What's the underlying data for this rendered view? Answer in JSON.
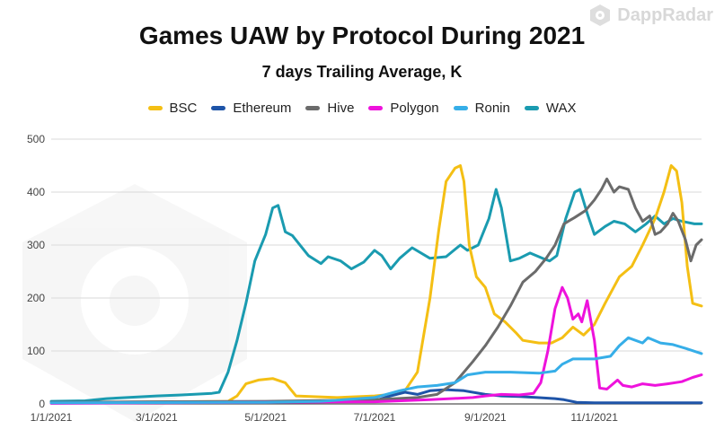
{
  "brand": {
    "name": "DappRadar"
  },
  "chart_data": {
    "type": "line",
    "title": "Games UAW by Protocol During 2021",
    "subtitle": "7 days Trailing Average, K",
    "legend_position": "top",
    "grid": true,
    "ylim": [
      0,
      500
    ],
    "yticks": [
      0,
      100,
      200,
      300,
      400,
      500
    ],
    "xlim": [
      "2021-01-01",
      "2021-12-31"
    ],
    "xticks": [
      {
        "date": "2021-01-01",
        "label": "1/1/2021"
      },
      {
        "date": "2021-03-01",
        "label": "3/1/2021"
      },
      {
        "date": "2021-05-01",
        "label": "5/1/2021"
      },
      {
        "date": "2021-07-01",
        "label": "7/1/2021"
      },
      {
        "date": "2021-09-01",
        "label": "9/1/2021"
      },
      {
        "date": "2021-11-01",
        "label": "11/1/2021"
      }
    ],
    "series": [
      {
        "name": "WAX",
        "color": "#1a9bb0",
        "points": [
          [
            "2021-01-01",
            5
          ],
          [
            "2021-01-20",
            6
          ],
          [
            "2021-02-01",
            10
          ],
          [
            "2021-03-01",
            15
          ],
          [
            "2021-03-15",
            17
          ],
          [
            "2021-04-01",
            20
          ],
          [
            "2021-04-05",
            22
          ],
          [
            "2021-04-10",
            60
          ],
          [
            "2021-04-15",
            120
          ],
          [
            "2021-04-20",
            190
          ],
          [
            "2021-04-25",
            270
          ],
          [
            "2021-05-01",
            320
          ],
          [
            "2021-05-05",
            370
          ],
          [
            "2021-05-08",
            375
          ],
          [
            "2021-05-12",
            325
          ],
          [
            "2021-05-16",
            318
          ],
          [
            "2021-05-25",
            280
          ],
          [
            "2021-06-01",
            265
          ],
          [
            "2021-06-05",
            278
          ],
          [
            "2021-06-12",
            270
          ],
          [
            "2021-06-18",
            255
          ],
          [
            "2021-06-25",
            268
          ],
          [
            "2021-07-01",
            290
          ],
          [
            "2021-07-05",
            280
          ],
          [
            "2021-07-10",
            255
          ],
          [
            "2021-07-15",
            275
          ],
          [
            "2021-07-22",
            295
          ],
          [
            "2021-08-01",
            275
          ],
          [
            "2021-08-10",
            278
          ],
          [
            "2021-08-18",
            300
          ],
          [
            "2021-08-22",
            290
          ],
          [
            "2021-08-28",
            300
          ],
          [
            "2021-09-03",
            350
          ],
          [
            "2021-09-07",
            405
          ],
          [
            "2021-09-10",
            370
          ],
          [
            "2021-09-15",
            270
          ],
          [
            "2021-09-20",
            275
          ],
          [
            "2021-09-26",
            285
          ],
          [
            "2021-10-03",
            275
          ],
          [
            "2021-10-07",
            270
          ],
          [
            "2021-10-11",
            280
          ],
          [
            "2021-10-16",
            350
          ],
          [
            "2021-10-21",
            400
          ],
          [
            "2021-10-24",
            405
          ],
          [
            "2021-10-28",
            360
          ],
          [
            "2021-11-01",
            320
          ],
          [
            "2021-11-07",
            335
          ],
          [
            "2021-11-12",
            345
          ],
          [
            "2021-11-18",
            340
          ],
          [
            "2021-11-24",
            325
          ],
          [
            "2021-11-30",
            340
          ],
          [
            "2021-12-05",
            355
          ],
          [
            "2021-12-10",
            340
          ],
          [
            "2021-12-15",
            350
          ],
          [
            "2021-12-20",
            345
          ],
          [
            "2021-12-27",
            340
          ],
          [
            "2021-12-31",
            340
          ]
        ]
      },
      {
        "name": "BSC",
        "color": "#f4bf14",
        "points": [
          [
            "2021-01-01",
            2
          ],
          [
            "2021-04-10",
            5
          ],
          [
            "2021-04-15",
            15
          ],
          [
            "2021-04-20",
            38
          ],
          [
            "2021-04-27",
            45
          ],
          [
            "2021-05-05",
            48
          ],
          [
            "2021-05-12",
            40
          ],
          [
            "2021-05-18",
            15
          ],
          [
            "2021-06-10",
            12
          ],
          [
            "2021-07-01",
            15
          ],
          [
            "2021-07-10",
            18
          ],
          [
            "2021-07-18",
            25
          ],
          [
            "2021-07-25",
            60
          ],
          [
            "2021-08-01",
            200
          ],
          [
            "2021-08-06",
            330
          ],
          [
            "2021-08-10",
            420
          ],
          [
            "2021-08-15",
            445
          ],
          [
            "2021-08-18",
            450
          ],
          [
            "2021-08-20",
            420
          ],
          [
            "2021-08-23",
            300
          ],
          [
            "2021-08-27",
            240
          ],
          [
            "2021-09-01",
            220
          ],
          [
            "2021-09-06",
            170
          ],
          [
            "2021-09-12",
            155
          ],
          [
            "2021-09-18",
            135
          ],
          [
            "2021-09-22",
            120
          ],
          [
            "2021-10-01",
            115
          ],
          [
            "2021-10-08",
            115
          ],
          [
            "2021-10-14",
            125
          ],
          [
            "2021-10-20",
            145
          ],
          [
            "2021-10-26",
            130
          ],
          [
            "2021-11-01",
            150
          ],
          [
            "2021-11-07",
            190
          ],
          [
            "2021-11-15",
            240
          ],
          [
            "2021-11-22",
            260
          ],
          [
            "2021-11-28",
            300
          ],
          [
            "2021-12-05",
            350
          ],
          [
            "2021-12-10",
            400
          ],
          [
            "2021-12-14",
            450
          ],
          [
            "2021-12-17",
            440
          ],
          [
            "2021-12-20",
            380
          ],
          [
            "2021-12-23",
            260
          ],
          [
            "2021-12-26",
            190
          ],
          [
            "2021-12-31",
            185
          ]
        ]
      },
      {
        "name": "Ethereum",
        "color": "#1e54a8",
        "points": [
          [
            "2021-01-01",
            3
          ],
          [
            "2021-06-01",
            4
          ],
          [
            "2021-07-01",
            6
          ],
          [
            "2021-07-10",
            15
          ],
          [
            "2021-07-18",
            22
          ],
          [
            "2021-07-25",
            18
          ],
          [
            "2021-08-01",
            25
          ],
          [
            "2021-08-10",
            27
          ],
          [
            "2021-08-20",
            25
          ],
          [
            "2021-09-01",
            18
          ],
          [
            "2021-09-10",
            15
          ],
          [
            "2021-09-20",
            14
          ],
          [
            "2021-09-30",
            12
          ],
          [
            "2021-10-10",
            10
          ],
          [
            "2021-10-15",
            8
          ],
          [
            "2021-10-22",
            3
          ],
          [
            "2021-11-01",
            2
          ],
          [
            "2021-12-31",
            2
          ]
        ]
      },
      {
        "name": "Hive",
        "color": "#6b6b6b",
        "points": [
          [
            "2021-01-01",
            3
          ],
          [
            "2021-03-01",
            4
          ],
          [
            "2021-05-01",
            5
          ],
          [
            "2021-07-01",
            8
          ],
          [
            "2021-07-25",
            12
          ],
          [
            "2021-08-05",
            18
          ],
          [
            "2021-08-15",
            40
          ],
          [
            "2021-08-25",
            80
          ],
          [
            "2021-09-01",
            110
          ],
          [
            "2021-09-08",
            145
          ],
          [
            "2021-09-15",
            185
          ],
          [
            "2021-09-22",
            230
          ],
          [
            "2021-09-29",
            250
          ],
          [
            "2021-10-05",
            275
          ],
          [
            "2021-10-10",
            300
          ],
          [
            "2021-10-15",
            340
          ],
          [
            "2021-10-21",
            352
          ],
          [
            "2021-10-27",
            365
          ],
          [
            "2021-11-01",
            385
          ],
          [
            "2021-11-05",
            405
          ],
          [
            "2021-11-08",
            425
          ],
          [
            "2021-11-12",
            400
          ],
          [
            "2021-11-15",
            410
          ],
          [
            "2021-11-20",
            405
          ],
          [
            "2021-11-24",
            370
          ],
          [
            "2021-11-28",
            345
          ],
          [
            "2021-12-02",
            355
          ],
          [
            "2021-12-05",
            320
          ],
          [
            "2021-12-08",
            325
          ],
          [
            "2021-12-12",
            340
          ],
          [
            "2021-12-15",
            360
          ],
          [
            "2021-12-18",
            345
          ],
          [
            "2021-12-22",
            310
          ],
          [
            "2021-12-25",
            270
          ],
          [
            "2021-12-28",
            300
          ],
          [
            "2021-12-31",
            310
          ]
        ]
      },
      {
        "name": "Polygon",
        "color": "#ee12dc",
        "points": [
          [
            "2021-01-01",
            1
          ],
          [
            "2021-07-01",
            4
          ],
          [
            "2021-08-01",
            8
          ],
          [
            "2021-08-25",
            12
          ],
          [
            "2021-09-01",
            15
          ],
          [
            "2021-09-10",
            18
          ],
          [
            "2021-09-20",
            17
          ],
          [
            "2021-09-28",
            20
          ],
          [
            "2021-10-02",
            40
          ],
          [
            "2021-10-06",
            100
          ],
          [
            "2021-10-10",
            180
          ],
          [
            "2021-10-14",
            220
          ],
          [
            "2021-10-17",
            200
          ],
          [
            "2021-10-20",
            160
          ],
          [
            "2021-10-23",
            170
          ],
          [
            "2021-10-25",
            155
          ],
          [
            "2021-10-28",
            195
          ],
          [
            "2021-11-01",
            120
          ],
          [
            "2021-11-04",
            30
          ],
          [
            "2021-11-08",
            28
          ],
          [
            "2021-11-14",
            45
          ],
          [
            "2021-11-17",
            35
          ],
          [
            "2021-11-22",
            32
          ],
          [
            "2021-11-28",
            38
          ],
          [
            "2021-12-05",
            35
          ],
          [
            "2021-12-12",
            38
          ],
          [
            "2021-12-20",
            42
          ],
          [
            "2021-12-26",
            50
          ],
          [
            "2021-12-31",
            55
          ]
        ]
      },
      {
        "name": "Ronin",
        "color": "#36aee8",
        "points": [
          [
            "2021-01-01",
            2
          ],
          [
            "2021-05-01",
            3
          ],
          [
            "2021-06-01",
            5
          ],
          [
            "2021-07-01",
            12
          ],
          [
            "2021-07-15",
            25
          ],
          [
            "2021-07-25",
            32
          ],
          [
            "2021-08-05",
            35
          ],
          [
            "2021-08-15",
            40
          ],
          [
            "2021-08-22",
            55
          ],
          [
            "2021-09-01",
            60
          ],
          [
            "2021-09-15",
            60
          ],
          [
            "2021-10-01",
            58
          ],
          [
            "2021-10-10",
            62
          ],
          [
            "2021-10-14",
            75
          ],
          [
            "2021-10-20",
            85
          ],
          [
            "2021-11-01",
            85
          ],
          [
            "2021-11-10",
            90
          ],
          [
            "2021-11-15",
            110
          ],
          [
            "2021-11-20",
            125
          ],
          [
            "2021-11-28",
            115
          ],
          [
            "2021-12-01",
            125
          ],
          [
            "2021-12-08",
            115
          ],
          [
            "2021-12-15",
            112
          ],
          [
            "2021-12-22",
            105
          ],
          [
            "2021-12-31",
            95
          ]
        ]
      }
    ]
  }
}
